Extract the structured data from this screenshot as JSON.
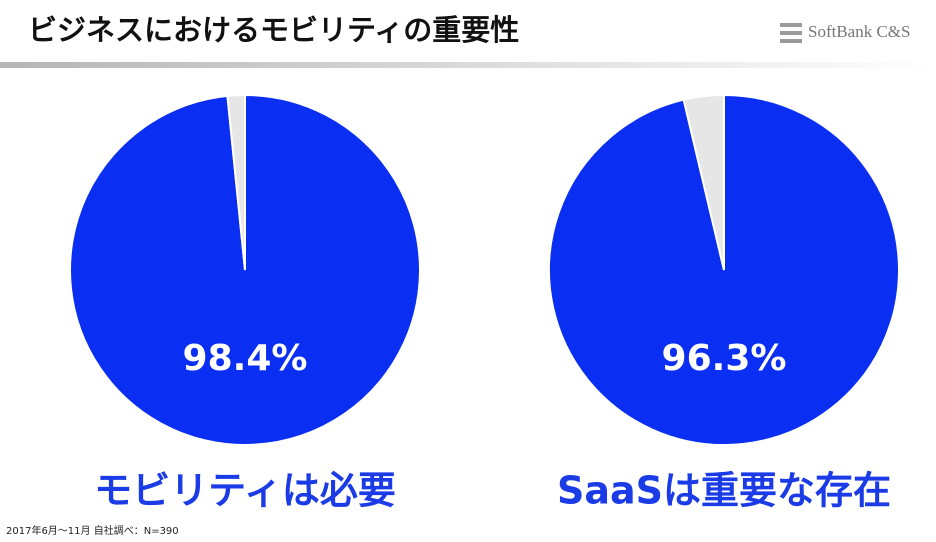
{
  "header": {
    "title": "ビジネスにおけるモビリティの重要性",
    "logo": "SoftBank C&S"
  },
  "chart_data": [
    {
      "type": "pie",
      "values": [
        98.4,
        1.6
      ],
      "value_labels": [
        "98.4%",
        null
      ],
      "colors": [
        "#0a2ff2",
        "#e6e6e6"
      ],
      "caption": "モビリティは必要"
    },
    {
      "type": "pie",
      "values": [
        96.3,
        3.7
      ],
      "value_labels": [
        "96.3%",
        null
      ],
      "colors": [
        "#0a2ff2",
        "#e6e6e6"
      ],
      "caption": "SaaSは重要な存在"
    }
  ],
  "footnote": "2017年6月～11月 自社調べ：N=390"
}
